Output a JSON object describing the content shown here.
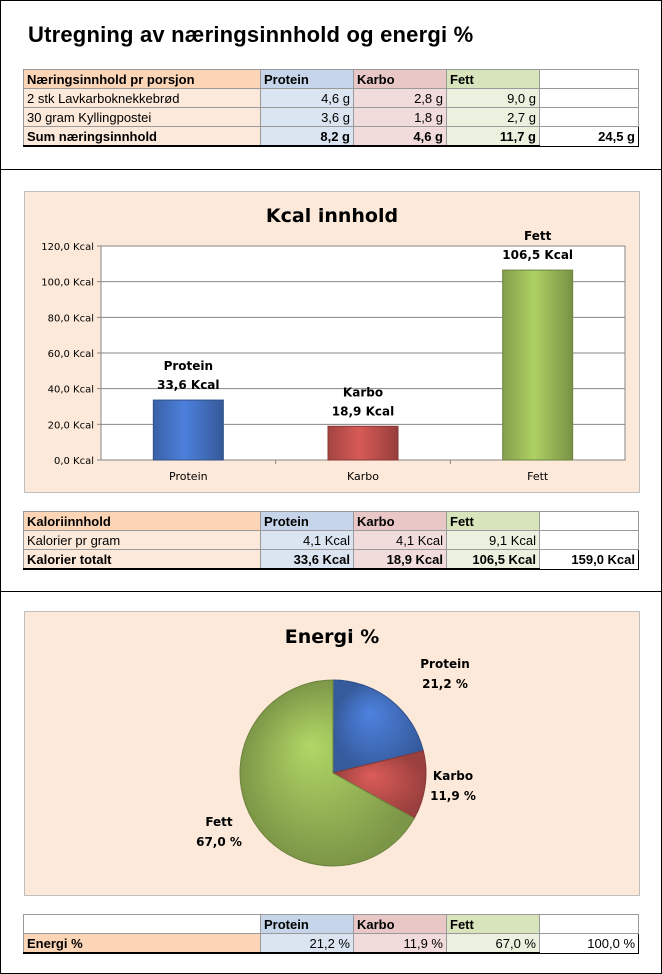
{
  "page_title": "Utregning av næringsinnhold og energi %",
  "table1": {
    "header": [
      "Næringsinnhold pr porsjon",
      "Protein",
      "Karbo",
      "Fett"
    ],
    "rows": [
      [
        "2 stk Lavkarboknekkebrød",
        "4,6 g",
        "2,8 g",
        "9,0 g"
      ],
      [
        "30 gram Kyllingpostei",
        "3,6 g",
        "1,8 g",
        "2,7 g"
      ]
    ],
    "sum": [
      "Sum næringsinnhold",
      "8,2 g",
      "4,6 g",
      "11,7 g",
      "24,5 g"
    ]
  },
  "chart_bar": {
    "type": "bar",
    "title": "Kcal innhold",
    "categories": [
      "Protein",
      "Karbo",
      "Fett"
    ],
    "values": [
      33.6,
      18.9,
      106.5
    ],
    "unit": "Kcal",
    "data_labels": [
      {
        "name": "Protein",
        "value": "33,6 Kcal"
      },
      {
        "name": "Karbo",
        "value": "18,9 Kcal"
      },
      {
        "name": "Fett",
        "value": "106,5 Kcal"
      }
    ],
    "ylim": [
      0,
      120
    ],
    "yticks": [
      "0,0 Kcal",
      "20,0 Kcal",
      "40,0 Kcal",
      "60,0 Kcal",
      "80,0 Kcal",
      "100,0 Kcal",
      "120,0 Kcal"
    ],
    "grid": true,
    "colors": [
      "#4472c4",
      "#c0504d",
      "#9bbb59"
    ]
  },
  "table2": {
    "header": [
      "Kaloriinnhold",
      "Protein",
      "Karbo",
      "Fett"
    ],
    "row": [
      "Kalorier pr gram",
      "4,1 Kcal",
      "4,1 Kcal",
      "9,1 Kcal"
    ],
    "sum": [
      "Kalorier totalt",
      "33,6 Kcal",
      "18,9 Kcal",
      "106,5 Kcal",
      "159,0 Kcal"
    ]
  },
  "chart_pie": {
    "type": "pie",
    "title": "Energi %",
    "categories": [
      "Protein",
      "Karbo",
      "Fett"
    ],
    "values": [
      21.2,
      11.9,
      67.0
    ],
    "data_labels": [
      {
        "name": "Protein",
        "value": "21,2 %"
      },
      {
        "name": "Karbo",
        "value": "11,9 %"
      },
      {
        "name": "Fett",
        "value": "67,0 %"
      }
    ],
    "colors": [
      "#4472c4",
      "#c0504d",
      "#9bbb59"
    ]
  },
  "table3": {
    "header": [
      "Protein",
      "Karbo",
      "Fett"
    ],
    "row": [
      "Energi %",
      "21,2 %",
      "11,9 %",
      "67,0 %",
      "100,0 %"
    ]
  }
}
